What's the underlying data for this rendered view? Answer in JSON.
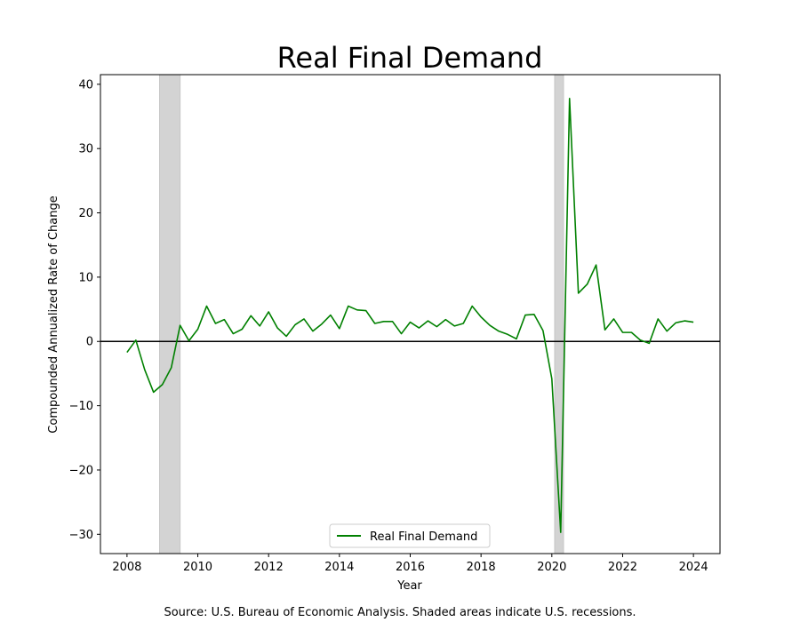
{
  "chart_data": {
    "type": "line",
    "title": "Real Final Demand",
    "xlabel": "Year",
    "ylabel": "Compounded Annualized Rate of Change",
    "source_note": "Source: U.S. Bureau of Economic Analysis. Shaded areas indicate U.S. recessions.",
    "xlim": [
      2007.25,
      2024.75
    ],
    "ylim": [
      -33,
      41.5
    ],
    "x_ticks": [
      2008,
      2010,
      2012,
      2014,
      2016,
      2018,
      2020,
      2022,
      2024
    ],
    "x_tick_labels": [
      "2008",
      "2010",
      "2012",
      "2014",
      "2016",
      "2018",
      "2020",
      "2022",
      "2024"
    ],
    "y_ticks": [
      -30,
      -20,
      -10,
      0,
      10,
      20,
      30,
      40
    ],
    "y_tick_labels": [
      "−30",
      "−20",
      "−10",
      "0",
      "10",
      "20",
      "30",
      "40"
    ],
    "grid": false,
    "zero_line": true,
    "legend_position": "lower-center",
    "recessions": [
      [
        2008.92,
        2009.5
      ],
      [
        2020.08,
        2020.33
      ]
    ],
    "recession_color": "#d3d3d3",
    "series": [
      {
        "name": "Real Final Demand",
        "color": "#008000",
        "x": [
          2008.0,
          2008.25,
          2008.5,
          2008.75,
          2009.0,
          2009.25,
          2009.5,
          2009.75,
          2010.0,
          2010.25,
          2010.5,
          2010.75,
          2011.0,
          2011.25,
          2011.5,
          2011.75,
          2012.0,
          2012.25,
          2012.5,
          2012.75,
          2013.0,
          2013.25,
          2013.5,
          2013.75,
          2014.0,
          2014.25,
          2014.5,
          2014.75,
          2015.0,
          2015.25,
          2015.5,
          2015.75,
          2016.0,
          2016.25,
          2016.5,
          2016.75,
          2017.0,
          2017.25,
          2017.5,
          2017.75,
          2018.0,
          2018.25,
          2018.5,
          2018.75,
          2019.0,
          2019.25,
          2019.5,
          2019.75,
          2020.0,
          2020.25,
          2020.5,
          2020.75,
          2021.0,
          2021.25,
          2021.5,
          2021.75,
          2022.0,
          2022.25,
          2022.5,
          2022.75,
          2023.0,
          2023.25,
          2023.5,
          2023.75,
          2024.0
        ],
        "values": [
          -1.7,
          0.2,
          -4.4,
          -7.9,
          -6.7,
          -4.1,
          2.5,
          0.1,
          1.9,
          5.5,
          2.8,
          3.4,
          1.2,
          1.9,
          4.0,
          2.4,
          4.6,
          2.1,
          0.8,
          2.6,
          3.5,
          1.6,
          2.7,
          4.1,
          2.0,
          5.5,
          4.9,
          4.8,
          2.8,
          3.1,
          3.1,
          1.2,
          3.0,
          2.1,
          3.2,
          2.3,
          3.4,
          2.4,
          2.8,
          5.5,
          3.8,
          2.5,
          1.6,
          1.1,
          0.4,
          4.1,
          4.2,
          1.7,
          -5.8,
          -29.7,
          37.8,
          7.5,
          8.9,
          11.9,
          1.8,
          3.5,
          1.4,
          1.4,
          0.2,
          -0.3,
          3.5,
          1.6,
          2.9,
          3.2,
          3.0
        ]
      }
    ]
  }
}
